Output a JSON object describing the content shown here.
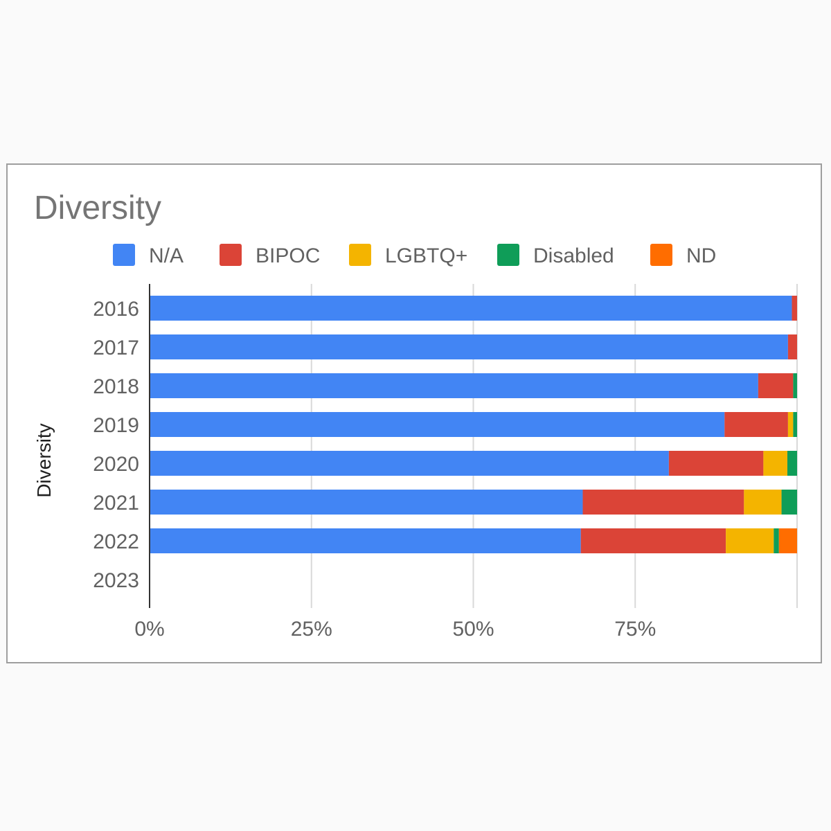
{
  "chart_data": {
    "type": "bar",
    "orientation": "horizontal",
    "stacked": "percent",
    "title": "Diversity",
    "ylabel": "Diversity",
    "xlabel": "",
    "categories": [
      "2016",
      "2017",
      "2018",
      "2019",
      "2020",
      "2021",
      "2022",
      "2023"
    ],
    "x_ticks": [
      "0%",
      "25%",
      "50%",
      "75%"
    ],
    "xlim": [
      0,
      100
    ],
    "grid": true,
    "legend_position": "top",
    "series": [
      {
        "name": "N/A",
        "color": "#4285f4",
        "values": [
          99.2,
          98.6,
          94.0,
          88.8,
          80.2,
          66.9,
          66.6,
          0
        ]
      },
      {
        "name": "BIPOC",
        "color": "#db4437",
        "values": [
          0.8,
          1.4,
          5.4,
          9.8,
          14.6,
          24.9,
          22.4,
          0
        ]
      },
      {
        "name": "LGBTQ+",
        "color": "#f4b400",
        "values": [
          0,
          0,
          0,
          0.8,
          3.7,
          5.8,
          7.4,
          0
        ]
      },
      {
        "name": "Disabled",
        "color": "#0f9d58",
        "values": [
          0,
          0,
          0.6,
          0.6,
          1.5,
          2.4,
          0.8,
          0
        ]
      },
      {
        "name": "ND",
        "color": "#ff6d00",
        "values": [
          0,
          0,
          0,
          0,
          0,
          0,
          2.8,
          0
        ]
      }
    ]
  }
}
